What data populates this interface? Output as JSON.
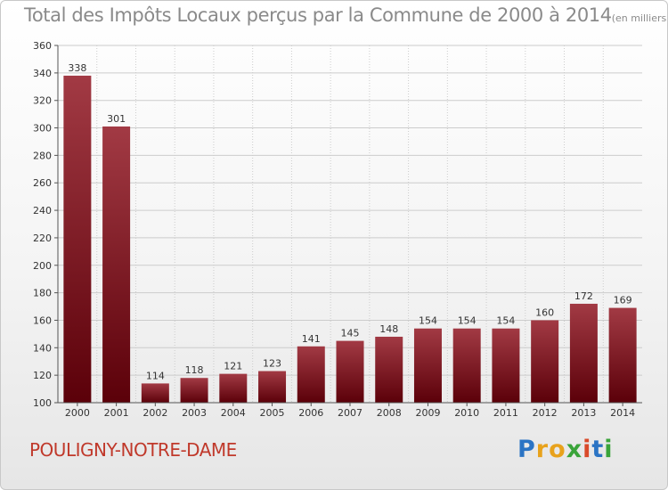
{
  "title": "Total des Impôts Locaux perçus par la Commune de 2000 à 2014",
  "unit_label": "(en milliers d'€)",
  "commune": "POULIGNY-NOTRE-DAME",
  "logo": {
    "text": "Proxiti",
    "letters": [
      "P",
      "r",
      "o",
      "x",
      "i",
      "t",
      "i"
    ],
    "colors": [
      "#2b74c4",
      "#e8a21c",
      "#e8a21c",
      "#3aa43a",
      "#d94a2a",
      "#2b74c4",
      "#3aa43a"
    ]
  },
  "colors": {
    "bar_top": "#a23a44",
    "bar_bottom": "#5b0009",
    "grid": "#cccccc",
    "title": "#8a8a8a",
    "commune": "#c0392b"
  },
  "chart_data": {
    "type": "bar",
    "title": "Total des Impôts Locaux perçus par la Commune de 2000 à 2014",
    "xlabel": "",
    "ylabel": "en milliers d'€",
    "categories": [
      "2000",
      "2001",
      "2002",
      "2003",
      "2004",
      "2005",
      "2006",
      "2007",
      "2008",
      "2009",
      "2010",
      "2011",
      "2012",
      "2013",
      "2014"
    ],
    "values": [
      338,
      301,
      114,
      118,
      121,
      123,
      141,
      145,
      148,
      154,
      154,
      154,
      160,
      172,
      169
    ],
    "ylim": [
      100,
      360
    ],
    "yticks": [
      100,
      120,
      140,
      160,
      180,
      200,
      220,
      240,
      260,
      280,
      300,
      320,
      340,
      360
    ],
    "grid": true
  }
}
